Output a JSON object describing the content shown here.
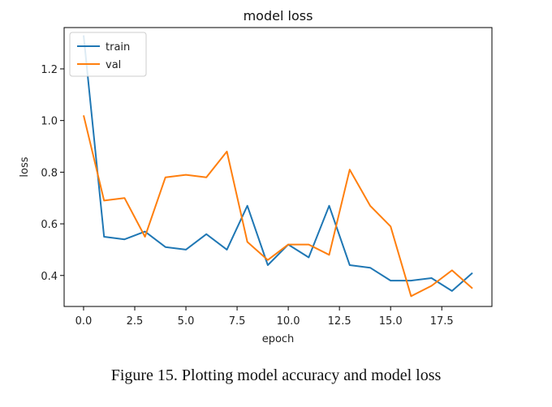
{
  "chart_data": {
    "type": "line",
    "title": "model loss",
    "xlabel": "epoch",
    "ylabel": "loss",
    "xlim": [
      -0.95,
      19.95
    ],
    "ylim": [
      0.28,
      1.36
    ],
    "xticks": [
      0.0,
      2.5,
      5.0,
      7.5,
      10.0,
      12.5,
      15.0,
      17.5
    ],
    "xtick_labels": [
      "0.0",
      "2.5",
      "5.0",
      "7.5",
      "10.0",
      "12.5",
      "15.0",
      "17.5"
    ],
    "yticks": [
      0.4,
      0.6,
      0.8,
      1.0,
      1.2
    ],
    "ytick_labels": [
      "0.4",
      "0.6",
      "0.8",
      "1.0",
      "1.2"
    ],
    "grid": false,
    "legend_position": "top-left",
    "x": [
      0,
      1,
      2,
      3,
      4,
      5,
      6,
      7,
      8,
      9,
      10,
      11,
      12,
      13,
      14,
      15,
      16,
      17,
      18,
      19
    ],
    "series": [
      {
        "name": "train",
        "color": "#1f77b4",
        "values": [
          1.33,
          0.55,
          0.54,
          0.57,
          0.51,
          0.5,
          0.56,
          0.5,
          0.67,
          0.44,
          0.52,
          0.47,
          0.67,
          0.44,
          0.43,
          0.38,
          0.38,
          0.39,
          0.34,
          0.41
        ]
      },
      {
        "name": "val",
        "color": "#ff7f0e",
        "values": [
          1.02,
          0.69,
          0.7,
          0.55,
          0.78,
          0.79,
          0.78,
          0.88,
          0.53,
          0.46,
          0.52,
          0.52,
          0.48,
          0.81,
          0.67,
          0.59,
          0.32,
          0.36,
          0.42,
          0.35
        ]
      }
    ]
  },
  "caption": "Figure 15. Plotting model accuracy and model loss"
}
